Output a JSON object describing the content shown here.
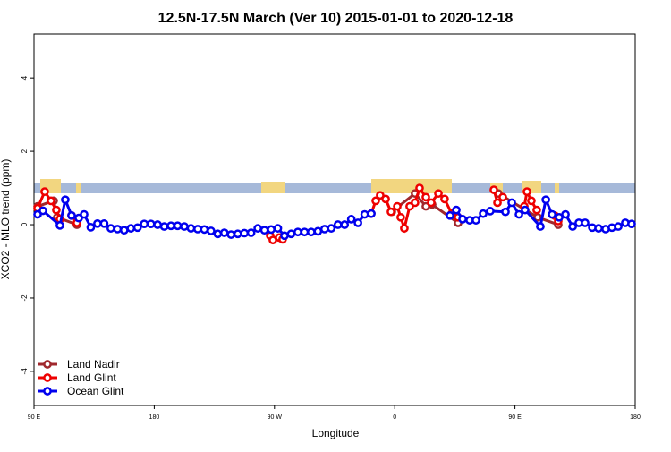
{
  "chart_data": {
    "type": "line",
    "title": "12.5N-17.5N March (Ver 10)   2015-01-01 to 2020-12-18",
    "xlabel": "Longitude",
    "ylabel": "XCO2 - MLO trend (ppm)",
    "xlim": [
      90,
      540
    ],
    "ylim": [
      -4.93,
      5.2
    ],
    "xticks": [
      {
        "value": 90,
        "label": "90 E"
      },
      180,
      {
        "value": 270,
        "label": "90 W"
      },
      {
        "value": 360,
        "label": "0"
      },
      {
        "value": 450,
        "label": "90 E"
      },
      {
        "value": 540,
        "label": "180"
      }
    ],
    "yticks": [
      -4,
      -2,
      0,
      2,
      4
    ],
    "legend": "bottom-left",
    "series": [
      {
        "name": "Land Nadir",
        "color": "#a0282d",
        "x": [
          92.7,
          104.7,
          107.4,
          122.1,
          null,
          357.8,
          375.2,
          383.3,
          388.0,
          407.4,
          null,
          437.5,
          467.0,
          482.4
        ],
        "values": [
          0.5,
          0.65,
          0.2,
          0.0,
          null,
          0.35,
          0.85,
          0.5,
          0.55,
          0.05,
          null,
          0.85,
          0.2,
          0.0
        ]
      },
      {
        "name": "Land Glint",
        "color": "#ee0000",
        "x": [
          92.7,
          98.0,
          102.7,
          106.7,
          109.4,
          null,
          118.1,
          122.1,
          null,
          266.8,
          268.8,
          273.5,
          276.1,
          null,
          342.4,
          345.8,
          349.1,
          353.2,
          357.2,
          361.9,
          364.5,
          367.2,
          371.2,
          375.2,
          378.6,
          383.3,
          387.3,
          392.7,
          397.3,
          402.7,
          407.4,
          null,
          434.2,
          436.9,
          440.9,
          null,
          457.0,
          459.0,
          462.3,
          466.3,
          null,
          479.7,
          482.4
        ],
        "values": [
          0.45,
          0.9,
          0.65,
          0.4,
          0.15,
          null,
          0.25,
          0.05,
          null,
          -0.3,
          -0.42,
          -0.35,
          -0.4,
          null,
          0.3,
          0.65,
          0.8,
          0.7,
          0.35,
          0.5,
          0.2,
          -0.1,
          0.5,
          0.6,
          1.0,
          0.75,
          0.6,
          0.85,
          0.7,
          0.3,
          0.2,
          null,
          0.95,
          0.6,
          0.75,
          null,
          0.5,
          0.9,
          0.65,
          0.4,
          null,
          0.25,
          0.1
        ]
      },
      {
        "name": "Ocean Glint",
        "color": "#0000ee",
        "x": [
          92.7,
          96.7,
          109.4,
          113.4,
          118.1,
          123.5,
          127.5,
          132.5,
          137.5,
          142.5,
          147.5,
          152.5,
          157.5,
          162.5,
          167.5,
          172.5,
          177.5,
          182.5,
          187.5,
          192.5,
          197.5,
          202.5,
          207.5,
          212.5,
          217.5,
          222.5,
          227.5,
          232.5,
          237.5,
          242.5,
          247.5,
          252.5,
          257.5,
          262.5,
          267.5,
          272.5,
          277.5,
          282.5,
          287.5,
          292.5,
          297.5,
          302.5,
          307.5,
          312.5,
          317.5,
          322.5,
          327.5,
          332.5,
          337.5,
          342.5,
          null,
          401.4,
          406.1,
          410.8,
          416.1,
          420.8,
          426.2,
          431.5,
          442.9,
          447.6,
          453.0,
          457.6,
          469.0,
          473.1,
          477.8,
          483.1,
          487.8,
          493.2,
          497.8,
          502.5,
          507.9,
          512.6,
          517.9,
          522.6,
          527.3,
          532.6,
          537.3
        ],
        "values": [
          0.28,
          0.38,
          -0.02,
          0.68,
          0.25,
          0.18,
          0.28,
          -0.07,
          0.03,
          0.03,
          -0.1,
          -0.12,
          -0.15,
          -0.1,
          -0.08,
          0.02,
          0.02,
          0.0,
          -0.05,
          -0.03,
          -0.03,
          -0.05,
          -0.1,
          -0.12,
          -0.13,
          -0.17,
          -0.25,
          -0.22,
          -0.27,
          -0.25,
          -0.23,
          -0.22,
          -0.1,
          -0.15,
          -0.13,
          -0.1,
          -0.3,
          -0.25,
          -0.2,
          -0.2,
          -0.2,
          -0.18,
          -0.12,
          -0.1,
          0.0,
          0.0,
          0.15,
          0.05,
          0.28,
          0.3,
          null,
          0.25,
          0.4,
          0.15,
          0.12,
          0.12,
          0.3,
          0.37,
          0.35,
          0.6,
          0.28,
          0.4,
          -0.05,
          0.68,
          0.28,
          0.2,
          0.28,
          -0.05,
          0.05,
          0.05,
          -0.08,
          -0.1,
          -0.12,
          -0.08,
          -0.05,
          0.05,
          0.02
        ]
      }
    ]
  }
}
